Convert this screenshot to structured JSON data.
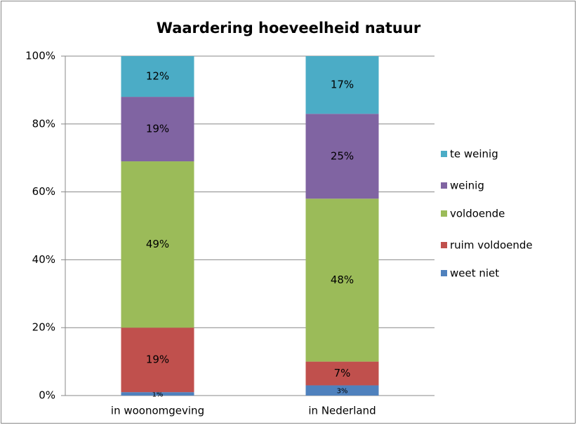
{
  "chart_data": {
    "type": "stacked_bar",
    "title": "Waardering hoeveelheid natuur",
    "categories": [
      "in woonomgeving",
      "in Nederland"
    ],
    "series": [
      {
        "name": "weet niet",
        "color": "#4f81bd",
        "values": [
          1,
          3
        ],
        "value_labels": [
          "1%",
          "3%"
        ]
      },
      {
        "name": "ruim voldoende",
        "color": "#c0504d",
        "values": [
          19,
          7
        ],
        "value_labels": [
          "19%",
          "7%"
        ]
      },
      {
        "name": "voldoende",
        "color": "#9bbb59",
        "values": [
          49,
          48
        ],
        "value_labels": [
          "49%",
          "48%"
        ]
      },
      {
        "name": "weinig",
        "color": "#8064a2",
        "values": [
          19,
          25
        ],
        "value_labels": [
          "19%",
          "25%"
        ]
      },
      {
        "name": "te weinig",
        "color": "#4bacc6",
        "values": [
          12,
          17
        ],
        "value_labels": [
          "12%",
          "17%"
        ]
      }
    ],
    "ylim": [
      0,
      100
    ],
    "yticks": [
      {
        "value": 0,
        "label": "0%"
      },
      {
        "value": 20,
        "label": "20%"
      },
      {
        "value": 40,
        "label": "40%"
      },
      {
        "value": 60,
        "label": "60%"
      },
      {
        "value": 80,
        "label": "80%"
      },
      {
        "value": 100,
        "label": "100%"
      }
    ],
    "grid": true,
    "legend": "right"
  }
}
